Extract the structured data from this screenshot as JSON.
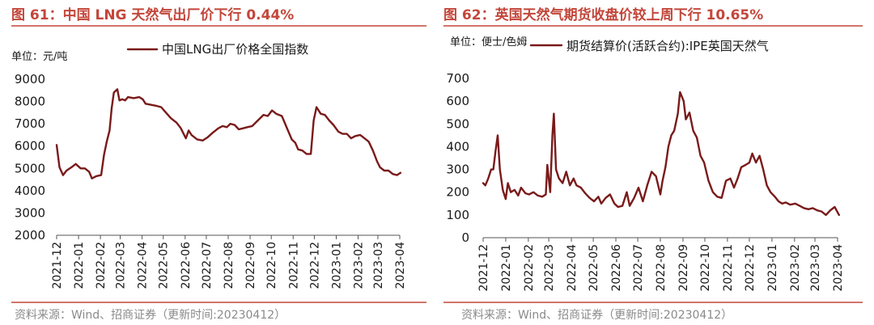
{
  "colors": {
    "title": "#c3463a",
    "series": "#7a1a1a",
    "source": "#8a8a8a"
  },
  "chart_data": [
    {
      "type": "line",
      "title": "图 61：中国 LNG 天然气出厂价下行 0.44%",
      "unit_label": "单位：元/吨",
      "ylabel": "",
      "ylim": [
        2000,
        9000
      ],
      "yticks": [
        2000,
        3000,
        4000,
        5000,
        6000,
        7000,
        8000,
        9000
      ],
      "x_ticks": [
        "2021-12",
        "2022-01",
        "2022-02",
        "2022-03",
        "2022-04",
        "2022-05",
        "2022-06",
        "2022-07",
        "2022-08",
        "2022-09",
        "2022-10",
        "2022-11",
        "2022-12",
        "2023-01",
        "2023-02",
        "2023-03",
        "2023-04"
      ],
      "source": "资料来源：Wind、招商证券（更新时间:20230412）",
      "series": [
        {
          "name": "中国LNG出厂价格全国指数",
          "points": [
            [
              "2021-12-01",
              6050
            ],
            [
              "2021-12-05",
              5050
            ],
            [
              "2021-12-10",
              4700
            ],
            [
              "2021-12-15",
              4900
            ],
            [
              "2021-12-22",
              5050
            ],
            [
              "2021-12-28",
              5200
            ],
            [
              "2022-01-04",
              5000
            ],
            [
              "2022-01-10",
              5000
            ],
            [
              "2022-01-16",
              4850
            ],
            [
              "2022-01-20",
              4550
            ],
            [
              "2022-01-26",
              4650
            ],
            [
              "2022-02-02",
              4700
            ],
            [
              "2022-02-06",
              5600
            ],
            [
              "2022-02-10",
              6200
            ],
            [
              "2022-02-14",
              6700
            ],
            [
              "2022-02-17",
              7700
            ],
            [
              "2022-02-20",
              8400
            ],
            [
              "2022-02-25",
              8550
            ],
            [
              "2022-02-28",
              8050
            ],
            [
              "2022-03-04",
              8100
            ],
            [
              "2022-03-08",
              8050
            ],
            [
              "2022-03-12",
              8200
            ],
            [
              "2022-03-20",
              8150
            ],
            [
              "2022-03-28",
              8200
            ],
            [
              "2022-04-02",
              8100
            ],
            [
              "2022-04-06",
              7900
            ],
            [
              "2022-04-14",
              7850
            ],
            [
              "2022-04-22",
              7800
            ],
            [
              "2022-04-28",
              7750
            ],
            [
              "2022-05-05",
              7500
            ],
            [
              "2022-05-12",
              7250
            ],
            [
              "2022-05-20",
              7050
            ],
            [
              "2022-05-26",
              6800
            ],
            [
              "2022-05-29",
              6600
            ],
            [
              "2022-06-02",
              6350
            ],
            [
              "2022-06-06",
              6700
            ],
            [
              "2022-06-10",
              6500
            ],
            [
              "2022-06-18",
              6300
            ],
            [
              "2022-06-26",
              6250
            ],
            [
              "2022-07-03",
              6400
            ],
            [
              "2022-07-10",
              6600
            ],
            [
              "2022-07-18",
              6800
            ],
            [
              "2022-07-24",
              6900
            ],
            [
              "2022-07-30",
              6850
            ],
            [
              "2022-08-04",
              7000
            ],
            [
              "2022-08-10",
              6950
            ],
            [
              "2022-08-16",
              6750
            ],
            [
              "2022-08-22",
              6800
            ],
            [
              "2022-08-28",
              6850
            ],
            [
              "2022-09-04",
              6900
            ],
            [
              "2022-09-12",
              7150
            ],
            [
              "2022-09-20",
              7400
            ],
            [
              "2022-09-26",
              7350
            ],
            [
              "2022-10-02",
              7600
            ],
            [
              "2022-10-08",
              7450
            ],
            [
              "2022-10-16",
              7350
            ],
            [
              "2022-10-22",
              6900
            ],
            [
              "2022-10-30",
              6300
            ],
            [
              "2022-11-04",
              6150
            ],
            [
              "2022-11-08",
              5850
            ],
            [
              "2022-11-14",
              5800
            ],
            [
              "2022-11-20",
              5650
            ],
            [
              "2022-11-26",
              5650
            ],
            [
              "2022-11-30",
              7150
            ],
            [
              "2022-12-04",
              7750
            ],
            [
              "2022-12-10",
              7450
            ],
            [
              "2022-12-16",
              7400
            ],
            [
              "2022-12-22",
              7150
            ],
            [
              "2022-12-28",
              6950
            ],
            [
              "2023-01-04",
              6650
            ],
            [
              "2023-01-10",
              6550
            ],
            [
              "2023-01-16",
              6550
            ],
            [
              "2023-01-22",
              6350
            ],
            [
              "2023-01-28",
              6450
            ],
            [
              "2023-02-04",
              6500
            ],
            [
              "2023-02-10",
              6350
            ],
            [
              "2023-02-16",
              6200
            ],
            [
              "2023-02-22",
              5800
            ],
            [
              "2023-02-28",
              5300
            ],
            [
              "2023-03-04",
              5050
            ],
            [
              "2023-03-10",
              4900
            ],
            [
              "2023-03-16",
              4900
            ],
            [
              "2023-03-22",
              4750
            ],
            [
              "2023-03-28",
              4700
            ],
            [
              "2023-04-02",
              4800
            ]
          ]
        }
      ]
    },
    {
      "type": "line",
      "title": "图 62：英国天然气期货收盘价较上周下行 10.65%",
      "unit_label": "单位：便士/色姆",
      "ylabel": "",
      "ylim": [
        0,
        700
      ],
      "yticks": [
        0,
        100,
        200,
        300,
        400,
        500,
        600,
        700
      ],
      "x_ticks": [
        "2021-12",
        "2022-01",
        "2022-02",
        "2022-03",
        "2022-04",
        "2022-05",
        "2022-06",
        "2022-07",
        "2022-08",
        "2022-09",
        "2022-10",
        "2022-11",
        "2022-12",
        "2023-01",
        "2023-02",
        "2023-03",
        "2023-04"
      ],
      "source": "资料来源：Wind、招商证券（更新时间:20230412）",
      "series": [
        {
          "name": "期货结算价(活跃合约):IPE英国天然气",
          "points": [
            [
              "2021-12-01",
              240
            ],
            [
              "2021-12-04",
              230
            ],
            [
              "2021-12-08",
              260
            ],
            [
              "2021-12-12",
              300
            ],
            [
              "2021-12-15",
              300
            ],
            [
              "2021-12-18",
              380
            ],
            [
              "2021-12-21",
              450
            ],
            [
              "2021-12-24",
              300
            ],
            [
              "2021-12-28",
              210
            ],
            [
              "2022-01-01",
              170
            ],
            [
              "2022-01-04",
              240
            ],
            [
              "2022-01-08",
              200
            ],
            [
              "2022-01-13",
              210
            ],
            [
              "2022-01-18",
              185
            ],
            [
              "2022-01-22",
              220
            ],
            [
              "2022-01-28",
              195
            ],
            [
              "2022-02-02",
              190
            ],
            [
              "2022-02-08",
              200
            ],
            [
              "2022-02-14",
              185
            ],
            [
              "2022-02-20",
              180
            ],
            [
              "2022-02-25",
              190
            ],
            [
              "2022-02-27",
              320
            ],
            [
              "2022-03-03",
              200
            ],
            [
              "2022-03-06",
              450
            ],
            [
              "2022-03-08",
              545
            ],
            [
              "2022-03-11",
              300
            ],
            [
              "2022-03-15",
              260
            ],
            [
              "2022-03-20",
              240
            ],
            [
              "2022-03-25",
              290
            ],
            [
              "2022-03-30",
              230
            ],
            [
              "2022-04-04",
              260
            ],
            [
              "2022-04-08",
              230
            ],
            [
              "2022-04-14",
              220
            ],
            [
              "2022-04-20",
              195
            ],
            [
              "2022-04-26",
              175
            ],
            [
              "2022-05-02",
              160
            ],
            [
              "2022-05-08",
              180
            ],
            [
              "2022-05-12",
              150
            ],
            [
              "2022-05-18",
              175
            ],
            [
              "2022-05-24",
              190
            ],
            [
              "2022-05-30",
              150
            ],
            [
              "2022-06-04",
              135
            ],
            [
              "2022-06-10",
              140
            ],
            [
              "2022-06-16",
              200
            ],
            [
              "2022-06-20",
              140
            ],
            [
              "2022-06-26",
              175
            ],
            [
              "2022-07-02",
              220
            ],
            [
              "2022-07-08",
              160
            ],
            [
              "2022-07-14",
              230
            ],
            [
              "2022-07-20",
              290
            ],
            [
              "2022-07-26",
              270
            ],
            [
              "2022-08-01",
              190
            ],
            [
              "2022-08-04",
              250
            ],
            [
              "2022-08-08",
              310
            ],
            [
              "2022-08-12",
              400
            ],
            [
              "2022-08-16",
              450
            ],
            [
              "2022-08-20",
              470
            ],
            [
              "2022-08-25",
              545
            ],
            [
              "2022-08-28",
              640
            ],
            [
              "2022-09-02",
              600
            ],
            [
              "2022-09-05",
              520
            ],
            [
              "2022-09-10",
              550
            ],
            [
              "2022-09-15",
              470
            ],
            [
              "2022-09-20",
              440
            ],
            [
              "2022-09-25",
              360
            ],
            [
              "2022-09-30",
              330
            ],
            [
              "2022-10-06",
              250
            ],
            [
              "2022-10-12",
              200
            ],
            [
              "2022-10-18",
              180
            ],
            [
              "2022-10-24",
              175
            ],
            [
              "2022-10-30",
              250
            ],
            [
              "2022-11-05",
              260
            ],
            [
              "2022-11-10",
              220
            ],
            [
              "2022-11-15",
              260
            ],
            [
              "2022-11-20",
              310
            ],
            [
              "2022-11-26",
              320
            ],
            [
              "2022-12-01",
              330
            ],
            [
              "2022-12-05",
              370
            ],
            [
              "2022-12-10",
              330
            ],
            [
              "2022-12-15",
              360
            ],
            [
              "2022-12-20",
              300
            ],
            [
              "2022-12-25",
              230
            ],
            [
              "2022-12-30",
              200
            ],
            [
              "2023-01-05",
              180
            ],
            [
              "2023-01-10",
              160
            ],
            [
              "2023-01-15",
              150
            ],
            [
              "2023-01-20",
              155
            ],
            [
              "2023-01-26",
              145
            ],
            [
              "2023-02-02",
              150
            ],
            [
              "2023-02-08",
              140
            ],
            [
              "2023-02-14",
              130
            ],
            [
              "2023-02-20",
              125
            ],
            [
              "2023-02-26",
              130
            ],
            [
              "2023-03-04",
              120
            ],
            [
              "2023-03-10",
              115
            ],
            [
              "2023-03-16",
              100
            ],
            [
              "2023-03-22",
              120
            ],
            [
              "2023-03-28",
              135
            ],
            [
              "2023-04-03",
              100
            ]
          ]
        }
      ]
    }
  ]
}
